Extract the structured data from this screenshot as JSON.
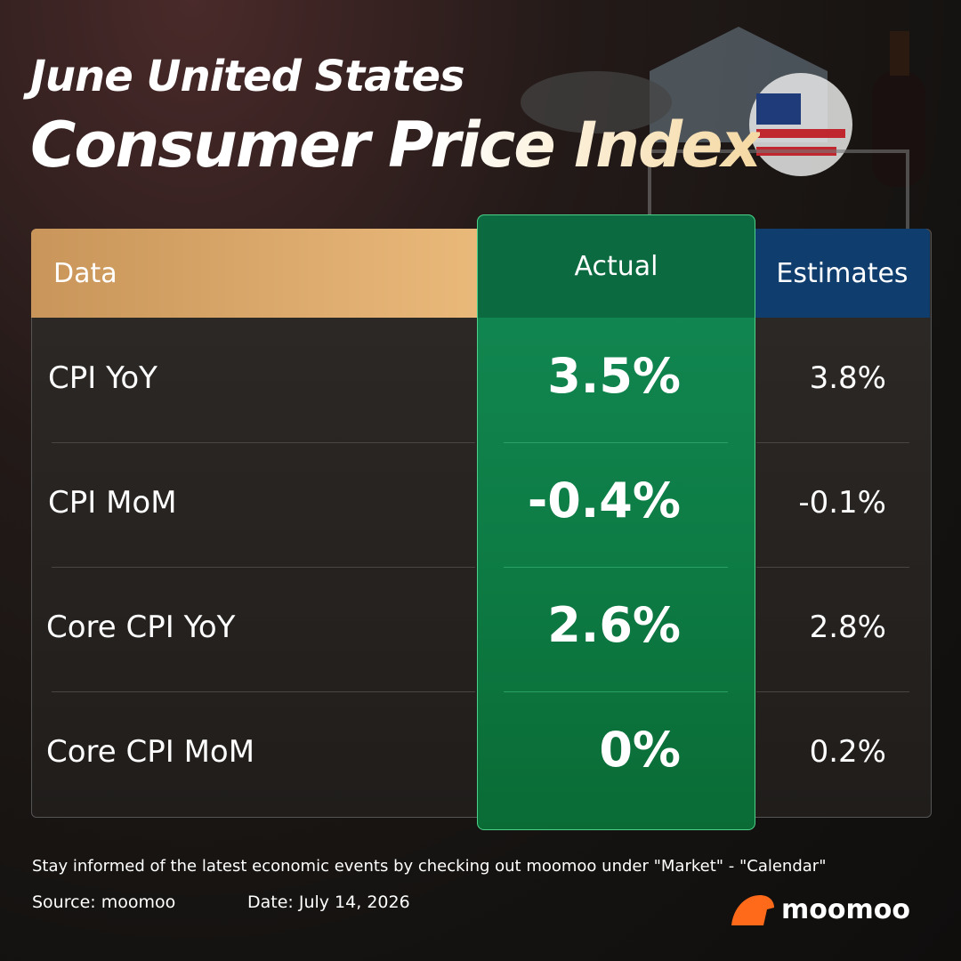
{
  "header": {
    "title_line1": "June United States",
    "title_line2": "Consumer Price Index"
  },
  "table": {
    "columns": [
      "Data",
      "Actual",
      "Estimates"
    ],
    "rows": [
      [
        "CPI YoY",
        "3.5%",
        "3.8%"
      ],
      [
        "CPI MoM",
        "-0.4%",
        "-0.1%"
      ],
      [
        "Core CPI YoY",
        "2.6%",
        "2.8%"
      ],
      [
        "Core CPI MoM",
        "0%",
        "0.2%"
      ]
    ]
  },
  "footer": {
    "note": "Stay informed of the latest economic events by checking out moomoo under \"Market\" - \"Calendar\"",
    "source": "Source: moomoo",
    "date": "Date: July 14, 2026"
  },
  "logo": {
    "text": "moomoo"
  }
}
